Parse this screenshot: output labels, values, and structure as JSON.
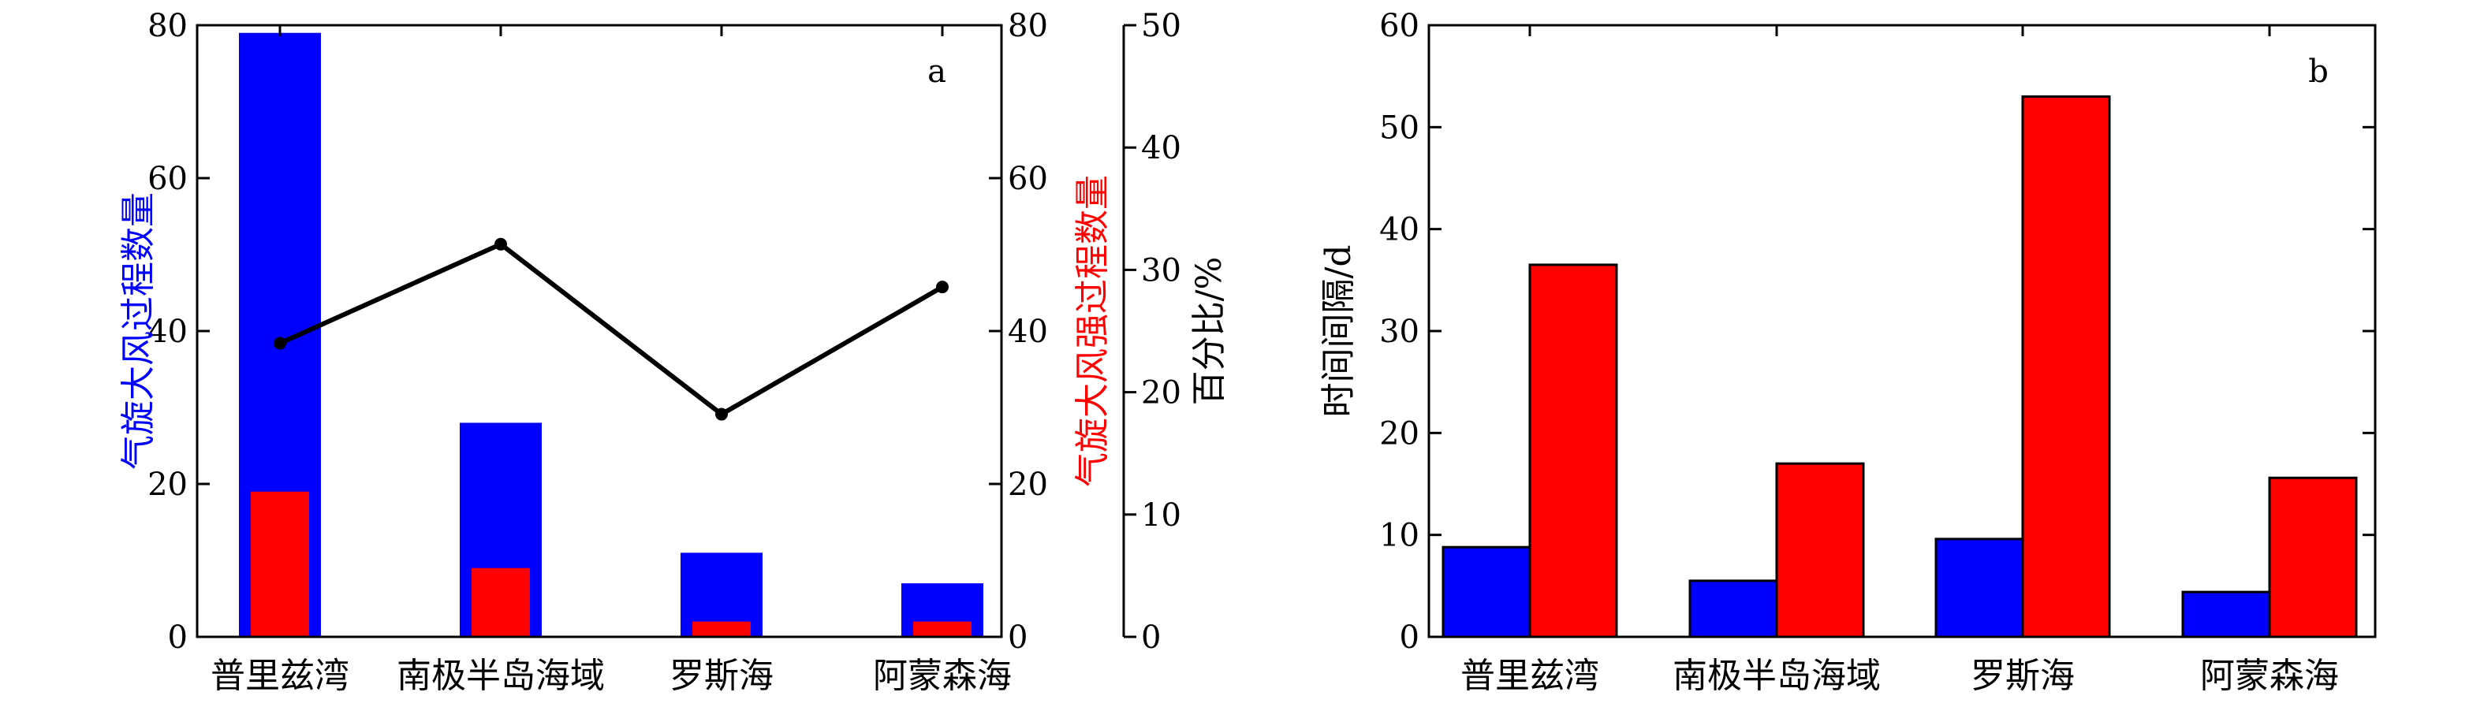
{
  "chart_data": [
    {
      "type": "bar",
      "panel_label": "a",
      "categories": [
        "普里兹湾",
        "南极半岛海域",
        "罗斯海",
        "阿蒙森海"
      ],
      "series": [
        {
          "name": "气旋大风过程数量",
          "type": "bar",
          "axis": "left",
          "color": "#0000ff",
          "values": [
            79,
            28,
            11,
            7
          ]
        },
        {
          "name": "气旋大风强过程数量",
          "type": "bar",
          "axis": "left",
          "color": "#ff0000",
          "values": [
            19,
            9,
            2,
            2
          ]
        },
        {
          "name": "百分比/%",
          "type": "line",
          "axis": "right2",
          "color": "#000000",
          "values": [
            24,
            32.1,
            18.2,
            28.6
          ]
        }
      ],
      "y_left": {
        "label": "气旋大风过程数量",
        "color": "#0000ff",
        "ylim": [
          0,
          80
        ],
        "ticks": [
          "0",
          "20",
          "40",
          "60",
          "80"
        ]
      },
      "y_right1": {
        "label": "气旋大风强过程数量",
        "color": "#ff0000",
        "ylim": [
          0,
          80
        ],
        "ticks": [
          "0",
          "20",
          "40",
          "60",
          "80"
        ]
      },
      "y_right2": {
        "label": "百分比/%",
        "color": "#000000",
        "ylim": [
          0,
          50
        ],
        "ticks": [
          "0",
          "10",
          "20",
          "30",
          "40",
          "50"
        ]
      },
      "grid": false,
      "legend": "none"
    },
    {
      "type": "bar",
      "panel_label": "b",
      "categories": [
        "普里兹湾",
        "南极半岛海域",
        "罗斯海",
        "阿蒙森海"
      ],
      "series": [
        {
          "color": "#0000ff",
          "values": [
            8.8,
            5.5,
            9.6,
            4.4
          ]
        },
        {
          "color": "#ff0000",
          "values": [
            36.5,
            17,
            53,
            15.6
          ]
        }
      ],
      "y_left": {
        "label": "时间间隔/d",
        "ylim": [
          0,
          60
        ],
        "ticks": [
          "0",
          "10",
          "20",
          "30",
          "40",
          "50",
          "60"
        ]
      },
      "grid": false,
      "legend": "none"
    }
  ]
}
